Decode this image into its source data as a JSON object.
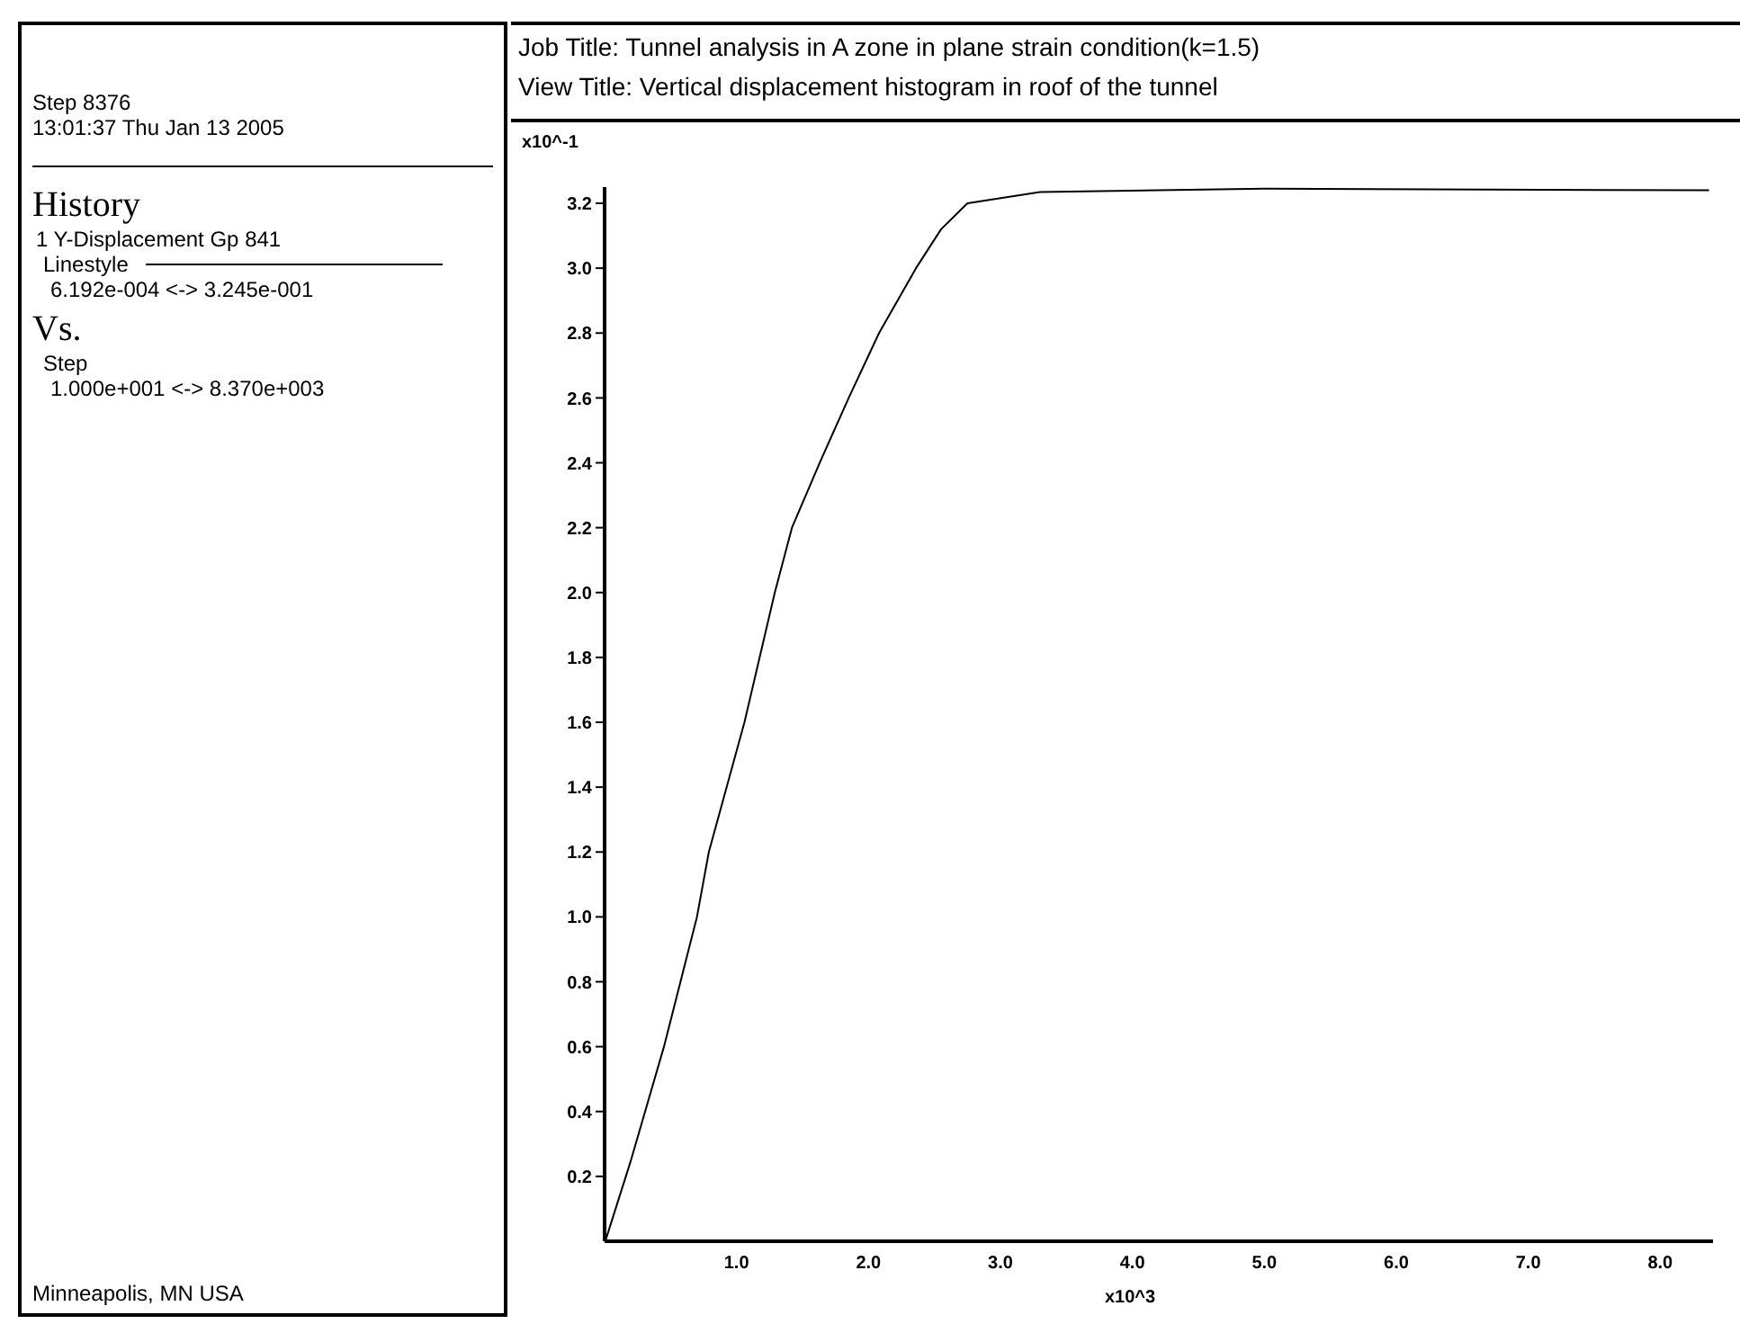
{
  "chart_data": {
    "type": "line",
    "title": "Job Title:  Tunnel analysis in A zone in plane strain condition(k=1.5)",
    "subtitle": "View Title: Vertical displacement histogram  in roof of the tunnel",
    "xlabel": "x10^3",
    "ylabel": "x10^-1",
    "annotations": [
      "Step 8376",
      "13:01:37 Thu Jan 13 2005",
      "History",
      "Linestyle",
      "6.192e-004 <-> 3.245e-001",
      "Vs.",
      "Step",
      "1.000e+001 <-> 8.370e+003",
      "Minneapolis, MN  USA"
    ],
    "x": [
      0.01,
      0.2,
      0.45,
      0.7,
      0.79,
      1.06,
      1.29,
      1.42,
      1.63,
      1.85,
      2.08,
      2.36,
      2.55,
      2.75,
      3.3,
      5.0,
      8.37
    ],
    "series": [
      {
        "name": "1 Y-Displacement Gp 841",
        "color": "#000000",
        "values": [
          0.006,
          0.25,
          0.6,
          1.0,
          1.2,
          1.6,
          2.0,
          2.2,
          2.4,
          2.6,
          2.8,
          3.0,
          3.12,
          3.2,
          3.235,
          3.245,
          3.24
        ]
      }
    ],
    "xlim": [
      0,
      8.4
    ],
    "ylim": [
      0,
      3.25
    ],
    "xticks": [
      {
        "value": 1,
        "label": "1.0"
      },
      {
        "value": 2,
        "label": "2.0"
      },
      {
        "value": 3,
        "label": "3.0"
      },
      {
        "value": 4,
        "label": "4.0"
      },
      {
        "value": 5,
        "label": "5.0"
      },
      {
        "value": 6,
        "label": "6.0"
      },
      {
        "value": 7,
        "label": "7.0"
      },
      {
        "value": 8,
        "label": "8.0"
      }
    ],
    "yticks": [
      {
        "value": 0.2,
        "label": "0.2"
      },
      {
        "value": 0.4,
        "label": "0.4"
      },
      {
        "value": 0.6,
        "label": "0.6"
      },
      {
        "value": 0.8,
        "label": "0.8"
      },
      {
        "value": 1.0,
        "label": "1.0"
      },
      {
        "value": 1.2,
        "label": "1.2"
      },
      {
        "value": 1.4,
        "label": "1.4"
      },
      {
        "value": 1.6,
        "label": "1.6"
      },
      {
        "value": 1.8,
        "label": "1.8"
      },
      {
        "value": 2.0,
        "label": "2.0"
      },
      {
        "value": 2.2,
        "label": "2.2"
      },
      {
        "value": 2.4,
        "label": "2.4"
      },
      {
        "value": 2.6,
        "label": "2.6"
      },
      {
        "value": 2.8,
        "label": "2.8"
      },
      {
        "value": 3.0,
        "label": "3.0"
      },
      {
        "value": 3.2,
        "label": "3.2"
      }
    ],
    "legend": "left",
    "marker": "none",
    "line_style": "solid",
    "grid": false
  }
}
